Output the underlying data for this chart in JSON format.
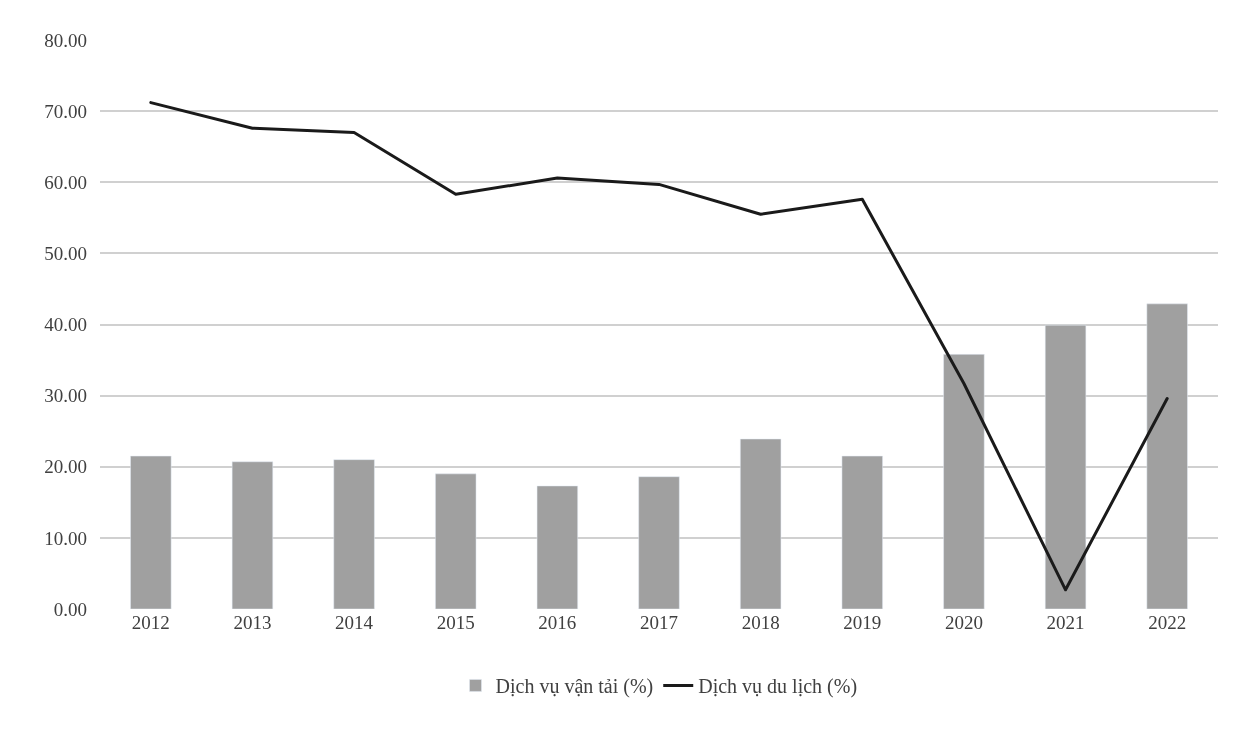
{
  "chart_data": {
    "type": "bar",
    "categories": [
      "2012",
      "2013",
      "2014",
      "2015",
      "2016",
      "2017",
      "2018",
      "2019",
      "2020",
      "2021",
      "2022"
    ],
    "series": [
      {
        "name": "Dịch vụ vận tải (%)",
        "color": "#a0a0a0",
        "values": [
          21.5,
          20.7,
          21.0,
          19.0,
          17.3,
          18.6,
          23.9,
          21.5,
          35.8,
          39.9,
          42.9
        ]
      },
      {
        "name": "Dịch vụ du lịch (%)",
        "type": "line",
        "color": "#1a1a1a",
        "values": [
          71.2,
          67.6,
          67.0,
          58.3,
          60.6,
          59.7,
          55.5,
          57.6,
          31.7,
          2.7,
          29.6
        ]
      }
    ],
    "ylim": [
      0,
      80
    ],
    "yticks": [
      {
        "value": 0,
        "label": "0.00"
      },
      {
        "value": 10,
        "label": "10.00"
      },
      {
        "value": 20,
        "label": "20.00"
      },
      {
        "value": 30,
        "label": "30.00"
      },
      {
        "value": 40,
        "label": "40.00"
      },
      {
        "value": 50,
        "label": "50.00"
      },
      {
        "value": 60,
        "label": "60.00"
      },
      {
        "value": 70,
        "label": "70.00"
      },
      {
        "value": 80,
        "label": "80.00"
      }
    ],
    "grid": "y",
    "legend": "bottom",
    "marker": "none",
    "line_style": "solid"
  }
}
